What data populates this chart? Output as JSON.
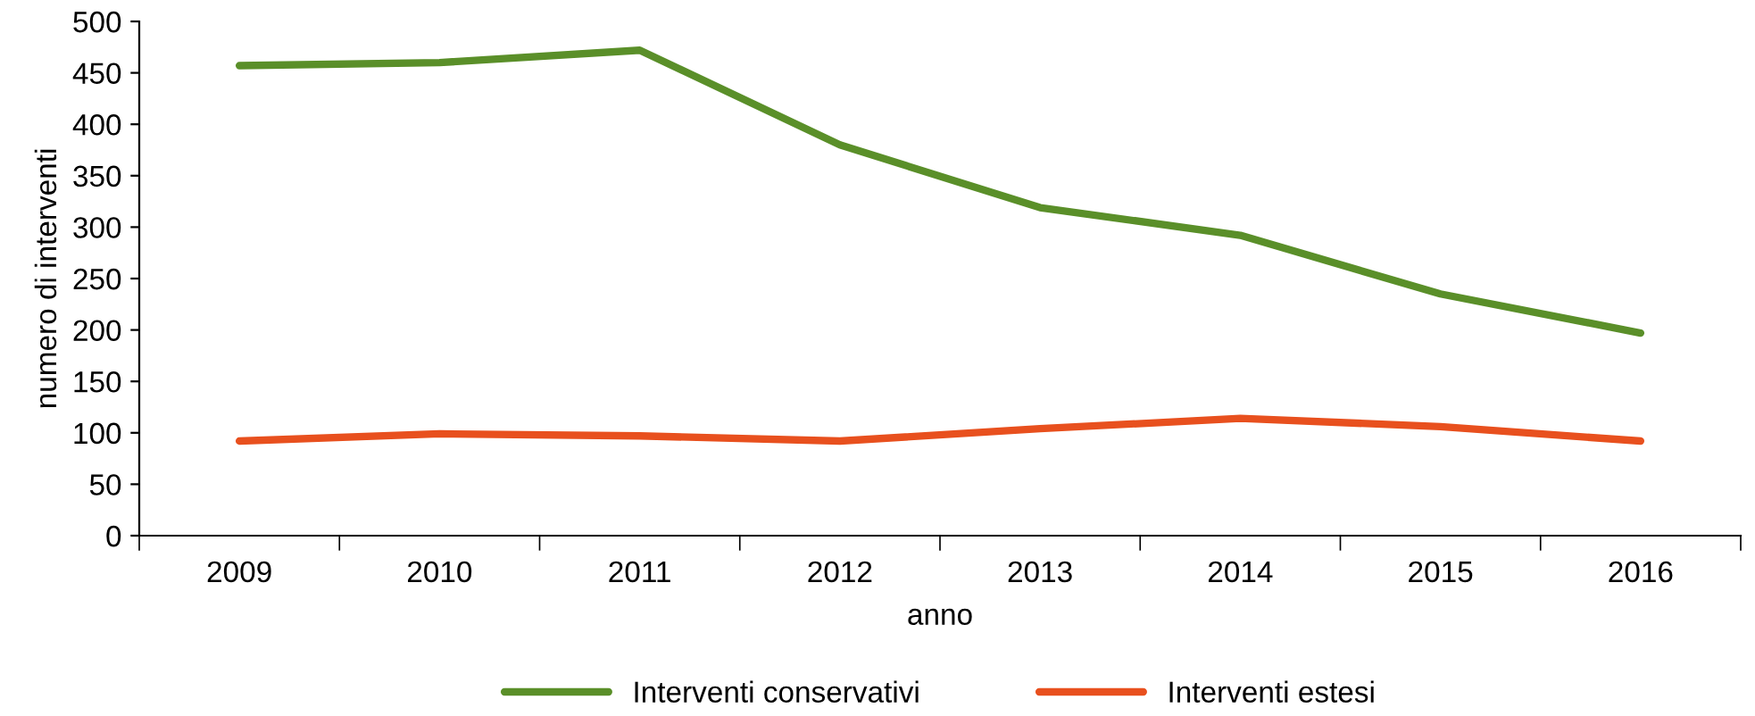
{
  "chart_data": {
    "type": "line",
    "xlabel": "anno",
    "ylabel": "numero di interventi",
    "categories": [
      "2009",
      "2010",
      "2011",
      "2012",
      "2013",
      "2014",
      "2015",
      "2016"
    ],
    "series": [
      {
        "name": "Interventi conservativi",
        "color": "#5a8f29",
        "values": [
          457,
          460,
          472,
          380,
          319,
          292,
          235,
          197
        ]
      },
      {
        "name": "Interventi estesi",
        "color": "#e8501e",
        "values": [
          92,
          99,
          97,
          92,
          104,
          114,
          106,
          92
        ]
      }
    ],
    "ylim": [
      0,
      500
    ],
    "yticks": [
      0,
      50,
      100,
      150,
      200,
      250,
      300,
      350,
      400,
      450,
      500
    ],
    "grid": false,
    "legend": "bottom",
    "marker": "none",
    "line_style": "solid"
  }
}
